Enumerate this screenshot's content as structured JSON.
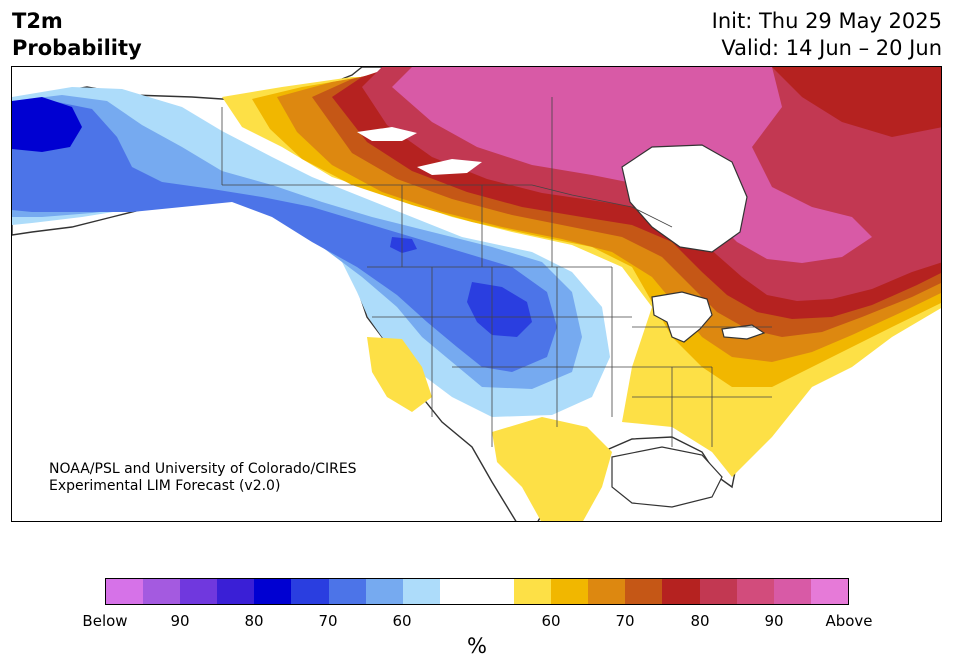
{
  "title": {
    "variable": "T2m",
    "subtitle": "Probability",
    "init": "Init: Thu 29 May 2025",
    "valid": "Valid: 14 Jun – 20 Jun"
  },
  "credit": {
    "line1": "NOAA/PSL and University of Colorado/CIRES",
    "line2": "Experimental LIM Forecast (v2.0)"
  },
  "colorbar": {
    "colors": [
      "#d672e8",
      "#a45ae0",
      "#7038de",
      "#3a1fd6",
      "#0000d2",
      "#2a3ee0",
      "#4c74e8",
      "#76aaf0",
      "#addcfa",
      "#ffffff",
      "#ffffff",
      "#fde046",
      "#f1b700",
      "#dd8810",
      "#c55716",
      "#b52220",
      "#c23852",
      "#d24c7c",
      "#d85aa6",
      "#e67ad8"
    ],
    "labels": [
      "Below",
      "90",
      "80",
      "70",
      "60",
      "60",
      "70",
      "80",
      "90",
      "Above"
    ],
    "unit": "%"
  },
  "map": {
    "regions": {
      "alaska": "below-normal",
      "canadian_rockies": "below-normal",
      "northern_plains": "below-normal",
      "arctic_canada": "above-normal",
      "eastern_canada": "above-normal",
      "great_lakes_northeast": "above-normal",
      "southeast_us": "above-normal",
      "southwest_coast": "above-normal",
      "mexico_gulf": "above-normal"
    }
  }
}
